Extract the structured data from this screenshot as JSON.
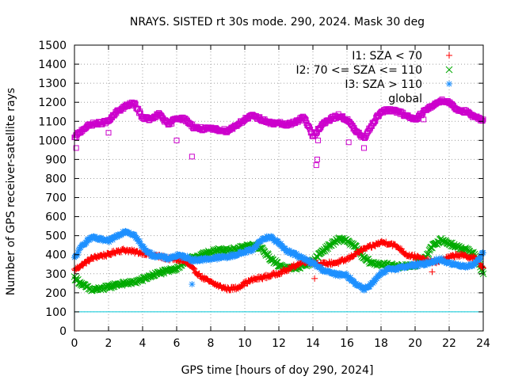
{
  "chart_data": {
    "type": "scatter",
    "title": "NRAYS. SISTED rt 30s mode. 290, 2024. Mask 30 deg",
    "xlabel": "GPS time [hours of doy 290, 2024]",
    "ylabel": "Number of GPS receiver-satellite rays",
    "xlim": [
      0,
      24
    ],
    "ylim": [
      0,
      1500
    ],
    "xticks": [
      0,
      2,
      4,
      6,
      8,
      10,
      12,
      14,
      16,
      18,
      20,
      22,
      24
    ],
    "yticks": [
      0,
      100,
      200,
      300,
      400,
      500,
      600,
      700,
      800,
      900,
      1000,
      1100,
      1200,
      1300,
      1400,
      1500
    ],
    "legend_position": "top-right",
    "reference_line": {
      "y": 100,
      "color": "#00c8d8"
    },
    "series": [
      {
        "name": "I1: SZA < 70",
        "marker": "+",
        "color": "#ff0000",
        "x": [
          0,
          0.5,
          1,
          1.5,
          2,
          2.5,
          3,
          3.5,
          4,
          4.5,
          5,
          5.5,
          6,
          6.5,
          7,
          7.5,
          8,
          8.5,
          9,
          9.5,
          10,
          10.5,
          11,
          11.5,
          12,
          12.5,
          13,
          13.5,
          14,
          14.5,
          15,
          15.5,
          16,
          16.5,
          17,
          17.5,
          18,
          18.5,
          19,
          19.5,
          20,
          20.5,
          21,
          21.5,
          22,
          22.5,
          23,
          23.5,
          24
        ],
        "y": [
          320,
          350,
          380,
          395,
          400,
          420,
          425,
          415,
          410,
          400,
          390,
          380,
          375,
          365,
          320,
          280,
          255,
          235,
          220,
          225,
          250,
          270,
          280,
          290,
          305,
          320,
          345,
          365,
          360,
          350,
          355,
          360,
          375,
          405,
          430,
          445,
          465,
          460,
          440,
          400,
          390,
          375,
          360,
          370,
          385,
          400,
          390,
          385,
          330
        ]
      },
      {
        "name": "I2: 70 <= SZA <= 110",
        "marker": "x",
        "color": "#00aa00",
        "x": [
          0,
          0.5,
          1,
          1.5,
          2,
          2.5,
          3,
          3.5,
          4,
          4.5,
          5,
          5.5,
          6,
          6.5,
          7,
          7.5,
          8,
          8.5,
          9,
          9.5,
          10,
          10.5,
          11,
          11.5,
          12,
          12.5,
          13,
          13.5,
          14,
          14.5,
          15,
          15.5,
          16,
          16.5,
          17,
          17.5,
          18,
          18.5,
          19,
          19.5,
          20,
          20.5,
          21,
          21.5,
          22,
          22.5,
          23,
          23.5,
          24
        ],
        "y": [
          280,
          240,
          215,
          220,
          230,
          245,
          250,
          255,
          270,
          290,
          305,
          315,
          330,
          360,
          385,
          400,
          415,
          425,
          425,
          430,
          440,
          450,
          430,
          380,
          345,
          330,
          330,
          345,
          365,
          415,
          450,
          480,
          475,
          440,
          380,
          355,
          350,
          345,
          340,
          340,
          345,
          375,
          440,
          480,
          460,
          440,
          425,
          405,
          300
        ]
      },
      {
        "name": "I3: SZA > 110",
        "marker": "*",
        "color": "#1e90ff",
        "x": [
          0,
          0.5,
          1,
          1.5,
          2,
          2.5,
          3,
          3.5,
          4,
          4.5,
          5,
          5.5,
          6,
          6.5,
          7,
          7.5,
          8,
          8.5,
          9,
          9.5,
          10,
          10.5,
          11,
          11.5,
          12,
          12.5,
          13,
          13.5,
          14,
          14.5,
          15,
          15.5,
          16,
          16.5,
          17,
          17.5,
          18,
          18.5,
          19,
          19.5,
          20,
          20.5,
          21,
          21.5,
          22,
          22.5,
          23,
          23.5,
          24
        ],
        "y": [
          380,
          455,
          490,
          480,
          470,
          500,
          525,
          505,
          440,
          400,
          390,
          380,
          395,
          390,
          370,
          375,
          380,
          385,
          390,
          400,
          415,
          430,
          480,
          495,
          460,
          420,
          400,
          375,
          355,
          325,
          305,
          295,
          290,
          250,
          220,
          250,
          300,
          325,
          330,
          340,
          345,
          350,
          365,
          375,
          355,
          345,
          340,
          350,
          410
        ]
      },
      {
        "name": "global",
        "marker": "square",
        "color": "#cc00cc",
        "x": [
          0,
          0.5,
          1,
          1.5,
          2,
          2.5,
          3,
          3.5,
          4,
          4.5,
          5,
          5.5,
          6,
          6.5,
          7,
          7.5,
          8,
          8.5,
          9,
          9.5,
          10,
          10.5,
          11,
          11.5,
          12,
          12.5,
          13,
          13.5,
          14,
          14.5,
          15,
          15.5,
          16,
          16.5,
          17,
          17.5,
          18,
          18.5,
          19,
          19.5,
          20,
          20.5,
          21,
          21.5,
          22,
          22.5,
          23,
          23.5,
          24
        ],
        "y": [
          1010,
          1060,
          1085,
          1090,
          1100,
          1150,
          1180,
          1195,
          1120,
          1110,
          1140,
          1080,
          1120,
          1110,
          1070,
          1060,
          1060,
          1055,
          1050,
          1080,
          1110,
          1130,
          1110,
          1090,
          1090,
          1080,
          1100,
          1120,
          1020,
          1080,
          1110,
          1130,
          1110,
          1050,
          1010,
          1090,
          1150,
          1160,
          1150,
          1130,
          1110,
          1150,
          1180,
          1210,
          1200,
          1160,
          1150,
          1120,
          1110
        ]
      }
    ],
    "outliers": [
      {
        "series": "global",
        "x": [
          0.1,
          0.15,
          2,
          6,
          6.9,
          14.2,
          14.25,
          14.3,
          16.1,
          17,
          20.5
        ],
        "y": [
          960,
          1040,
          1040,
          1000,
          915,
          870,
          900,
          1000,
          990,
          960,
          1110
        ]
      },
      {
        "series": "I3: SZA > 110",
        "x": [
          6.9
        ],
        "y": [
          245
        ]
      },
      {
        "series": "I1: SZA < 70",
        "x": [
          14.1,
          21
        ],
        "y": [
          275,
          310
        ]
      }
    ]
  }
}
